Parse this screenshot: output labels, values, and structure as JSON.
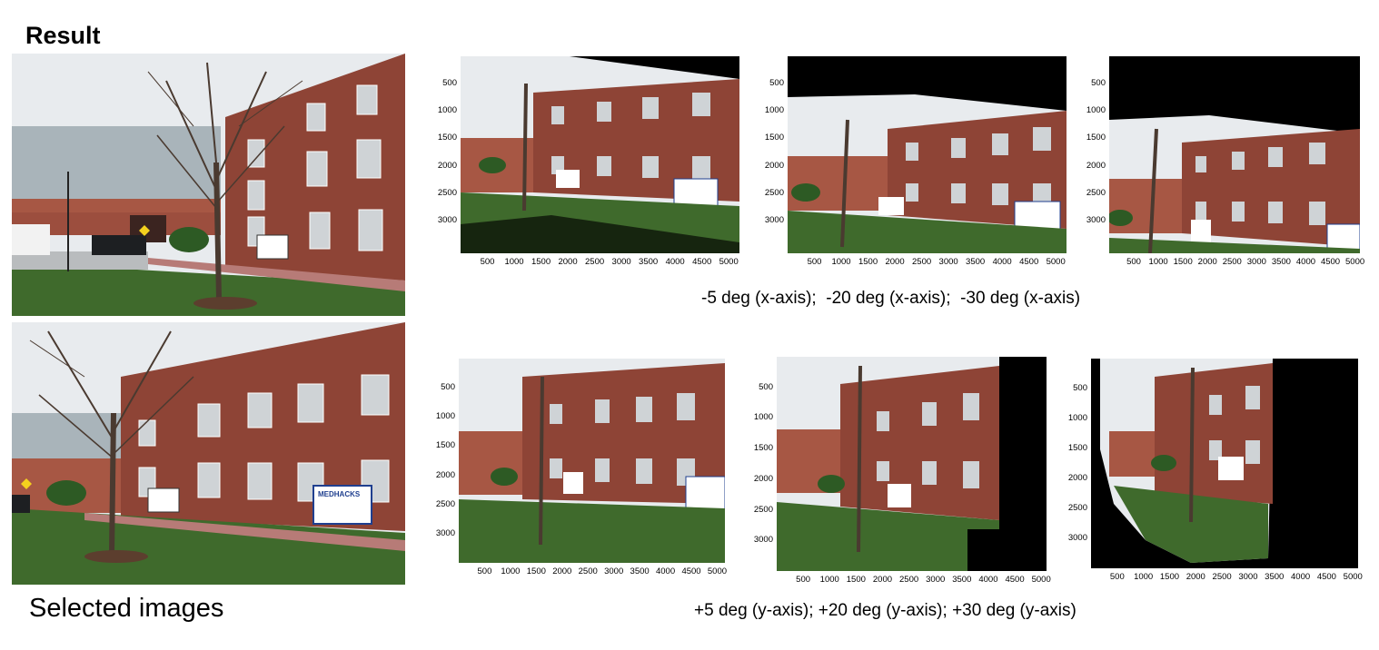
{
  "header": {
    "title": "Result"
  },
  "selected_caption": "Selected images",
  "captions": {
    "x_axis_row": "-5 deg (x-axis);  -20 deg (x-axis);  -30 deg (x-axis)",
    "y_axis_row": "+5 deg (y-axis); +20 deg (y-axis); +30 deg (y-axis)"
  },
  "selected_images": [
    {
      "name": "building-left-view",
      "sign_text": ""
    },
    {
      "name": "building-right-view",
      "sign_text": "MEDHACKS"
    }
  ],
  "plots": {
    "yticks": [
      "500",
      "1000",
      "1500",
      "2000",
      "2500",
      "3000"
    ],
    "xticks": [
      "500",
      "1000",
      "1500",
      "2000",
      "2500",
      "3000",
      "3500",
      "4000",
      "4500",
      "5000"
    ],
    "panels": [
      {
        "id": "x-5",
        "rotation": "-5 deg (x-axis)"
      },
      {
        "id": "x-20",
        "rotation": "-20 deg (x-axis)"
      },
      {
        "id": "x-30",
        "rotation": "-30 deg (x-axis)"
      },
      {
        "id": "y+5",
        "rotation": "+5 deg (y-axis)"
      },
      {
        "id": "y+20",
        "rotation": "+20 deg (y-axis)"
      },
      {
        "id": "y+30",
        "rotation": "+30 deg (y-axis)"
      }
    ]
  },
  "colors": {
    "brick": "#8e4436",
    "sky": "#e9ecef",
    "grass": "#3f6a2c",
    "path": "#b77b77",
    "background": "#000000"
  }
}
